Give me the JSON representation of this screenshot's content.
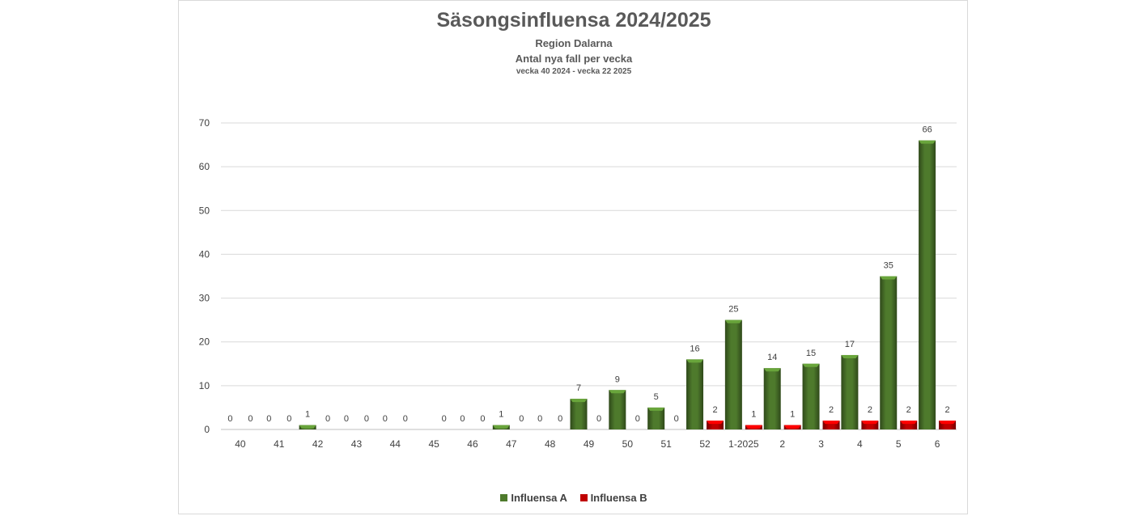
{
  "chart_data": {
    "type": "bar",
    "title": "Säsongsinfluensa 2024/2025",
    "subtitle_lines": [
      "Region Dalarna",
      "Antal nya fall per vecka",
      "vecka 40 2024 - vecka 22 2025"
    ],
    "categories": [
      "40",
      "41",
      "42",
      "43",
      "44",
      "45",
      "46",
      "47",
      "48",
      "49",
      "50",
      "51",
      "52",
      "1-2025",
      "2",
      "3",
      "4",
      "5",
      "6"
    ],
    "series": [
      {
        "name": "Influensa A",
        "color": "#4e7a2c",
        "values": [
          0,
          0,
          1,
          0,
          0,
          null,
          0,
          1,
          0,
          7,
          9,
          5,
          16,
          25,
          14,
          15,
          17,
          35,
          66
        ]
      },
      {
        "name": "Influensa B",
        "color": "#c00000",
        "values": [
          0,
          0,
          0,
          0,
          0,
          0,
          0,
          0,
          0,
          0,
          0,
          0,
          2,
          1,
          1,
          2,
          2,
          2,
          2
        ]
      }
    ],
    "ylim": [
      0,
      70
    ],
    "yticks": [
      0,
      10,
      20,
      30,
      40,
      50,
      60,
      70
    ],
    "grid": true,
    "legend_position": "bottom"
  }
}
